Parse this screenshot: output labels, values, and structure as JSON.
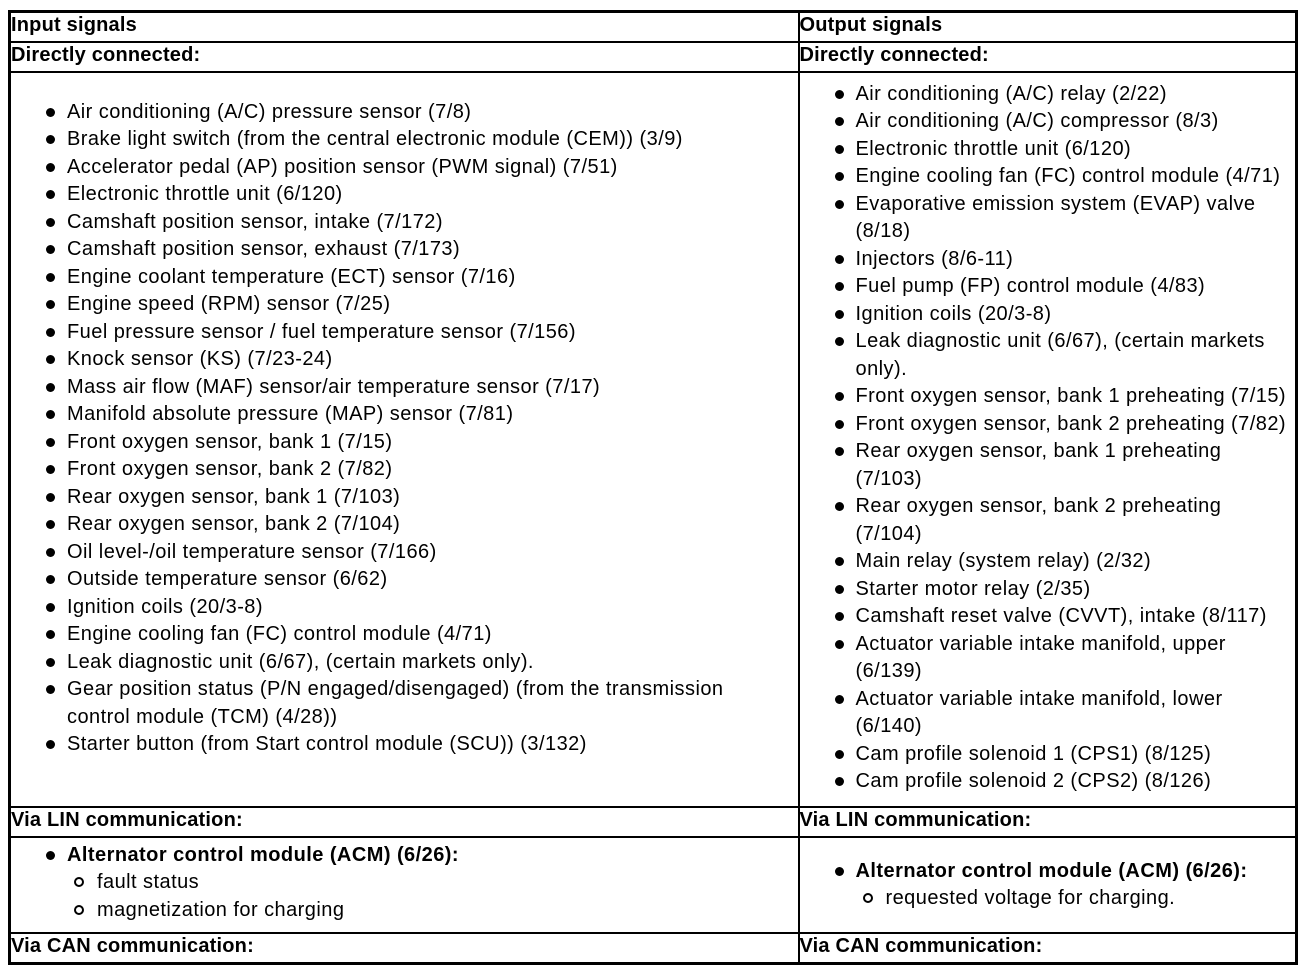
{
  "page": {
    "background_color": "#ffffff",
    "text_color": "#000000",
    "border_color": "#000000"
  },
  "table": {
    "columns": [
      {
        "header": "Input signals",
        "sections": [
          {
            "title": "Directly connected:",
            "items": [
              "Air conditioning (A/C) pressure sensor (7/8)",
              "Brake light switch (from the central electronic module (CEM)) (3/9)",
              "Accelerator pedal (AP) position sensor (PWM signal) (7/51)",
              "Electronic throttle unit (6/120)",
              "Camshaft position sensor, intake (7/172)",
              "Camshaft position sensor, exhaust (7/173)",
              "Engine coolant temperature (ECT) sensor (7/16)",
              "Engine speed (RPM) sensor (7/25)",
              "Fuel pressure sensor / fuel temperature sensor (7/156)",
              "Knock sensor (KS) (7/23-24)",
              "Mass air flow (MAF) sensor/air temperature sensor (7/17)",
              "Manifold absolute pressure (MAP) sensor (7/81)",
              "Front oxygen sensor, bank 1 (7/15)",
              "Front oxygen sensor, bank 2 (7/82)",
              "Rear oxygen sensor, bank 1 (7/103)",
              "Rear oxygen sensor, bank 2 (7/104)",
              "Oil level-/oil temperature sensor (7/166)",
              "Outside temperature sensor (6/62)",
              "Ignition coils (20/3-8)",
              "Engine cooling fan (FC) control module (4/71)",
              "Leak diagnostic unit (6/67), (certain markets only).",
              "Gear position status (P/N engaged/disengaged) (from the transmission control module (TCM) (4/28))",
              "Starter button (from Start control module (SCU)) (3/132)"
            ]
          },
          {
            "title": "Via LIN communication:",
            "items": [
              {
                "text": "Alternator control module (ACM) (6/26):",
                "bold": true,
                "subitems": [
                  "fault status",
                  "magnetization for charging"
                ]
              }
            ]
          },
          {
            "title": "Via CAN communication:",
            "items": []
          }
        ]
      },
      {
        "header": "Output signals",
        "sections": [
          {
            "title": "Directly connected:",
            "items": [
              "Air conditioning (A/C) relay (2/22)",
              "Air conditioning (A/C) compressor (8/3)",
              "Electronic throttle unit (6/120)",
              "Engine cooling fan (FC) control module (4/71)",
              "Evaporative emission system (EVAP) valve (8/18)",
              "Injectors (8/6-11)",
              "Fuel pump (FP) control module (4/83)",
              "Ignition coils (20/3-8)",
              "Leak diagnostic unit (6/67), (certain markets only).",
              "Front oxygen sensor, bank 1 preheating (7/15)",
              "Front oxygen sensor, bank 2 preheating (7/82)",
              "Rear oxygen sensor, bank 1 preheating (7/103)",
              "Rear oxygen sensor, bank 2 preheating (7/104)",
              "Main relay (system relay) (2/32)",
              "Starter motor relay (2/35)",
              "Camshaft reset valve (CVVT), intake (8/117)",
              "Actuator variable intake manifold, upper (6/139)",
              "Actuator variable intake manifold, lower (6/140)",
              "Cam profile solenoid 1 (CPS1) (8/125)",
              "Cam profile solenoid 2 (CPS2) (8/126)"
            ]
          },
          {
            "title": "Via LIN communication:",
            "items": [
              {
                "text": "Alternator control module (ACM) (6/26):",
                "bold": true,
                "subitems": [
                  "requested voltage for charging."
                ]
              }
            ]
          },
          {
            "title": "Via CAN communication:",
            "items": []
          }
        ]
      }
    ]
  }
}
